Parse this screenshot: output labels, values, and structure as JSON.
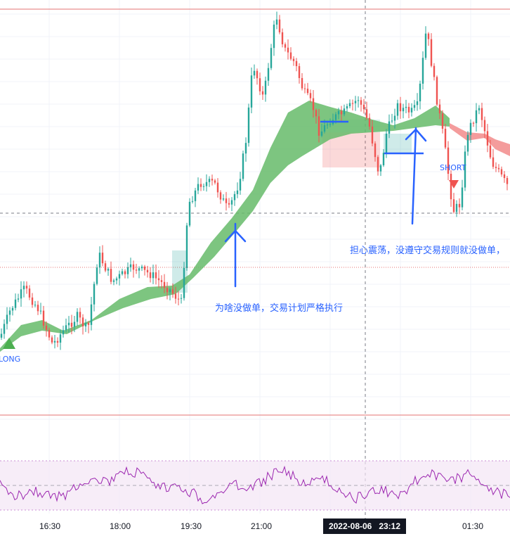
{
  "chart": {
    "signals": {
      "long_label": "LONG",
      "short_label": "SHORT"
    },
    "annotations": [
      {
        "text": "为啥没做单，交易计划严格执行"
      },
      {
        "text": "担心震荡，没遵守交易规则就没做单，"
      }
    ],
    "time_axis": {
      "ticks": [
        "16:30",
        "18:00",
        "19:30",
        "21:00",
        "01:30"
      ],
      "crosshair_label": "2022-08-06   23:12"
    },
    "colors": {
      "up": "#26a69a",
      "down": "#ef5350",
      "ribbon_bull": "#66bb6a",
      "ribbon_bear": "#f28b8b",
      "annotation_blue": "#2962ff",
      "rsi_line": "#9c27b0",
      "rsi_band": "#f3e5f5",
      "level_line": "#e57373"
    },
    "icons": [
      "long-triangle-icon",
      "short-triangle-icon",
      "chevron-up-icon"
    ]
  }
}
